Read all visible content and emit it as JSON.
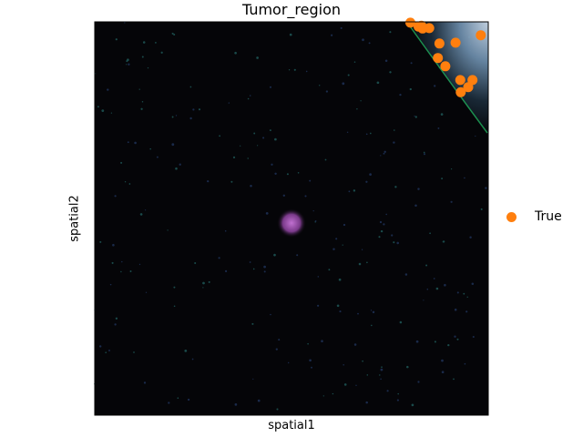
{
  "colors": {
    "accent": "#ff7f0e",
    "image_background": "#050508"
  },
  "chart_data": {
    "type": "scatter",
    "title": "Tumor_region",
    "xlabel": "spatial1",
    "ylabel": "spatial2",
    "grid": false,
    "legend_placement": "right",
    "background": "dark microscopy tissue image with bright tissue in top-right corner",
    "series": [
      {
        "name": "True",
        "color": "#ff7f0e",
        "points": [
          [
            0.802,
            0.002
          ],
          [
            0.823,
            0.012
          ],
          [
            0.833,
            0.017
          ],
          [
            0.83,
            0.01
          ],
          [
            0.85,
            0.016
          ],
          [
            0.876,
            0.055
          ],
          [
            0.917,
            0.053
          ],
          [
            0.981,
            0.034
          ],
          [
            0.872,
            0.092
          ],
          [
            0.891,
            0.113
          ],
          [
            0.929,
            0.148
          ],
          [
            0.96,
            0.148
          ],
          [
            0.949,
            0.166
          ],
          [
            0.93,
            0.179
          ]
        ]
      }
    ]
  }
}
